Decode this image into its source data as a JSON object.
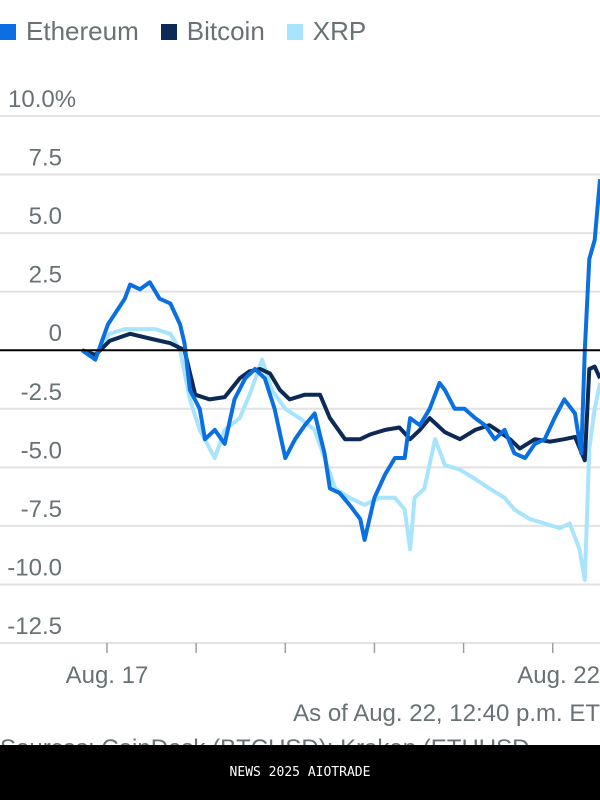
{
  "chart_data": {
    "type": "line",
    "title": "",
    "xlabel": "",
    "ylabel": "",
    "y_unit": "%",
    "ylim": [
      -12.5,
      10.0
    ],
    "yticks": [
      10.0,
      7.5,
      5.0,
      2.5,
      0,
      -2.5,
      -5.0,
      -7.5,
      -10.0,
      -12.5
    ],
    "ytick_labels": [
      "10.0%",
      "7.5",
      "5.0",
      "2.5",
      "0",
      "-2.5",
      "-5.0",
      "-7.5",
      "-10.0",
      "-12.5"
    ],
    "xlim": [
      16.72,
      22.53
    ],
    "xticks": [
      17,
      18,
      19,
      20,
      21,
      22
    ],
    "xtick_labels": [
      "Aug. 17",
      "",
      "",
      "",
      "",
      "Aug. 22"
    ],
    "grid": true,
    "legend_position": "top-left",
    "series": [
      {
        "name": "Ethereum",
        "color": "#0a6fe0",
        "points": [
          [
            16.72,
            0
          ],
          [
            16.87,
            -0.4
          ],
          [
            17.01,
            1.1
          ],
          [
            17.2,
            2.2
          ],
          [
            17.26,
            2.8
          ],
          [
            17.37,
            2.6
          ],
          [
            17.48,
            2.9
          ],
          [
            17.59,
            2.2
          ],
          [
            17.71,
            2.0
          ],
          [
            17.82,
            1.1
          ],
          [
            17.87,
            0.3
          ],
          [
            17.93,
            -1.7
          ],
          [
            18.04,
            -2.5
          ],
          [
            18.1,
            -3.8
          ],
          [
            18.21,
            -3.4
          ],
          [
            18.32,
            -4.0
          ],
          [
            18.43,
            -2.1
          ],
          [
            18.55,
            -1.2
          ],
          [
            18.66,
            -0.8
          ],
          [
            18.77,
            -1.2
          ],
          [
            18.88,
            -2.5
          ],
          [
            19.0,
            -4.6
          ],
          [
            19.11,
            -3.8
          ],
          [
            19.22,
            -3.2
          ],
          [
            19.33,
            -2.7
          ],
          [
            19.44,
            -4.4
          ],
          [
            19.5,
            -5.9
          ],
          [
            19.61,
            -6.1
          ],
          [
            19.72,
            -6.6
          ],
          [
            19.84,
            -7.2
          ],
          [
            19.89,
            -8.1
          ],
          [
            20.0,
            -6.3
          ],
          [
            20.12,
            -5.3
          ],
          [
            20.23,
            -4.6
          ],
          [
            20.34,
            -4.6
          ],
          [
            20.4,
            -2.9
          ],
          [
            20.51,
            -3.2
          ],
          [
            20.62,
            -2.5
          ],
          [
            20.73,
            -1.4
          ],
          [
            20.79,
            -1.7
          ],
          [
            20.9,
            -2.5
          ],
          [
            21.01,
            -2.5
          ],
          [
            21.13,
            -2.9
          ],
          [
            21.24,
            -3.2
          ],
          [
            21.35,
            -3.8
          ],
          [
            21.46,
            -3.4
          ],
          [
            21.57,
            -4.4
          ],
          [
            21.69,
            -4.6
          ],
          [
            21.8,
            -4.0
          ],
          [
            21.91,
            -3.8
          ],
          [
            22.02,
            -2.9
          ],
          [
            22.13,
            -2.1
          ],
          [
            22.25,
            -2.7
          ],
          [
            22.32,
            -4.4
          ],
          [
            22.36,
            0
          ],
          [
            22.41,
            3.9
          ],
          [
            22.47,
            4.7
          ],
          [
            22.53,
            7.3
          ]
        ]
      },
      {
        "name": "Bitcoin",
        "color": "#0c2a55",
        "points": [
          [
            16.72,
            0
          ],
          [
            16.87,
            -0.2
          ],
          [
            17.03,
            0.4
          ],
          [
            17.26,
            0.7
          ],
          [
            17.48,
            0.5
          ],
          [
            17.71,
            0.3
          ],
          [
            17.87,
            0
          ],
          [
            17.99,
            -1.9
          ],
          [
            18.15,
            -2.1
          ],
          [
            18.32,
            -2.0
          ],
          [
            18.49,
            -1.2
          ],
          [
            18.6,
            -0.9
          ],
          [
            18.72,
            -0.8
          ],
          [
            18.83,
            -1.0
          ],
          [
            18.94,
            -1.7
          ],
          [
            19.05,
            -2.1
          ],
          [
            19.22,
            -1.9
          ],
          [
            19.39,
            -1.9
          ],
          [
            19.5,
            -2.9
          ],
          [
            19.67,
            -3.8
          ],
          [
            19.84,
            -3.8
          ],
          [
            19.95,
            -3.6
          ],
          [
            20.12,
            -3.4
          ],
          [
            20.28,
            -3.3
          ],
          [
            20.4,
            -3.8
          ],
          [
            20.51,
            -3.4
          ],
          [
            20.62,
            -2.9
          ],
          [
            20.79,
            -3.5
          ],
          [
            20.96,
            -3.8
          ],
          [
            21.13,
            -3.4
          ],
          [
            21.29,
            -3.2
          ],
          [
            21.41,
            -3.5
          ],
          [
            21.52,
            -3.8
          ],
          [
            21.63,
            -4.2
          ],
          [
            21.8,
            -3.8
          ],
          [
            21.97,
            -3.9
          ],
          [
            22.13,
            -3.8
          ],
          [
            22.25,
            -3.7
          ],
          [
            22.36,
            -4.7
          ],
          [
            22.41,
            -0.8
          ],
          [
            22.47,
            -0.7
          ],
          [
            22.53,
            -1.2
          ]
        ]
      },
      {
        "name": "XRP",
        "color": "#a8e4fb",
        "points": [
          [
            16.72,
            0
          ],
          [
            16.87,
            -0.2
          ],
          [
            17.03,
            0.7
          ],
          [
            17.2,
            0.9
          ],
          [
            17.37,
            0.9
          ],
          [
            17.54,
            0.9
          ],
          [
            17.71,
            0.7
          ],
          [
            17.82,
            0
          ],
          [
            17.93,
            -2.1
          ],
          [
            18.04,
            -3.4
          ],
          [
            18.21,
            -4.6
          ],
          [
            18.32,
            -3.4
          ],
          [
            18.49,
            -2.9
          ],
          [
            18.6,
            -1.9
          ],
          [
            18.74,
            -0.4
          ],
          [
            18.85,
            -1.7
          ],
          [
            19.0,
            -2.5
          ],
          [
            19.16,
            -2.9
          ],
          [
            19.33,
            -3.4
          ],
          [
            19.44,
            -4.6
          ],
          [
            19.56,
            -5.9
          ],
          [
            19.72,
            -6.3
          ],
          [
            19.89,
            -6.6
          ],
          [
            20.06,
            -6.3
          ],
          [
            20.23,
            -6.3
          ],
          [
            20.34,
            -6.8
          ],
          [
            20.4,
            -8.5
          ],
          [
            20.45,
            -6.3
          ],
          [
            20.56,
            -5.9
          ],
          [
            20.68,
            -3.8
          ],
          [
            20.79,
            -4.9
          ],
          [
            20.96,
            -5.1
          ],
          [
            21.13,
            -5.5
          ],
          [
            21.29,
            -5.9
          ],
          [
            21.46,
            -6.3
          ],
          [
            21.57,
            -6.8
          ],
          [
            21.74,
            -7.2
          ],
          [
            21.91,
            -7.4
          ],
          [
            22.08,
            -7.6
          ],
          [
            22.19,
            -7.4
          ],
          [
            22.3,
            -8.5
          ],
          [
            22.36,
            -9.8
          ],
          [
            22.41,
            -4.2
          ],
          [
            22.47,
            -2.5
          ],
          [
            22.53,
            -1.4
          ]
        ]
      }
    ],
    "zero_line": true
  },
  "note": "As of Aug. 22, 12:40 p.m. ET",
  "source": "Sources: CoinDesk (BTCUSD); Kraken (ETHUSD, XRPUSD)",
  "footer": "NEWS 2025 AIOTRADE"
}
